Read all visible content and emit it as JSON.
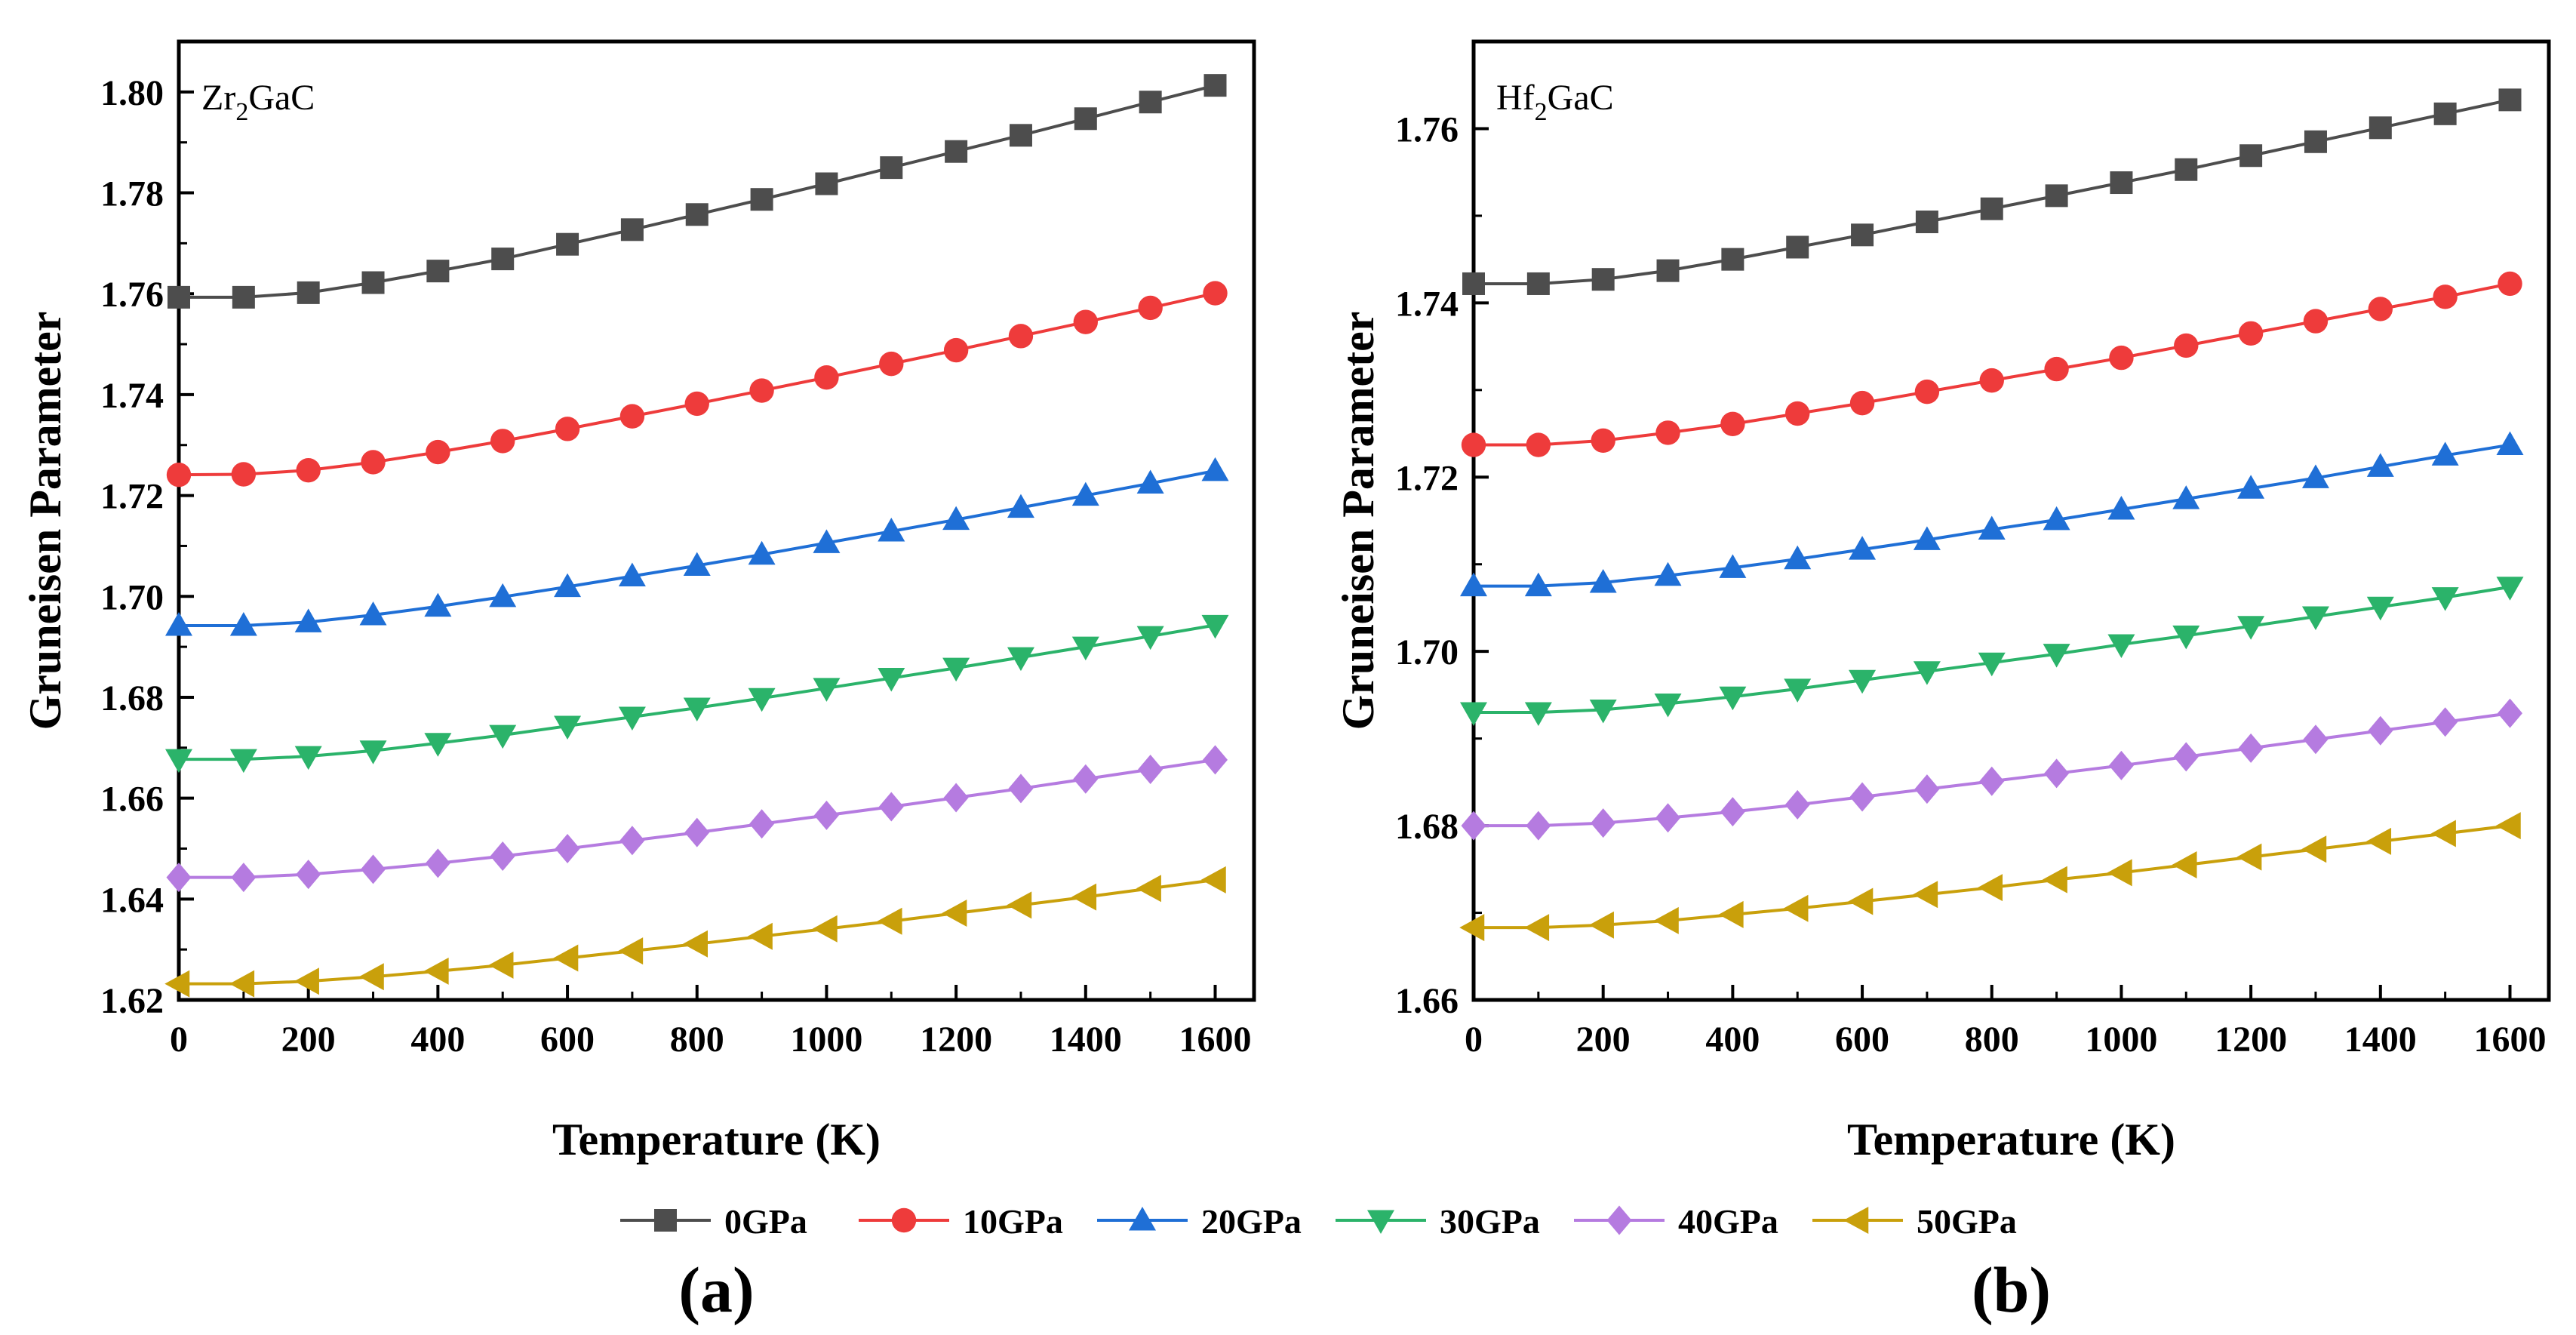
{
  "legend": [
    {
      "name": "0GPa",
      "color": "#4d4d4d",
      "marker": "square"
    },
    {
      "name": "10GPa",
      "color": "#ee3b3b",
      "marker": "circle"
    },
    {
      "name": "20GPa",
      "color": "#1f6fd6",
      "marker": "triangle-up"
    },
    {
      "name": "30GPa",
      "color": "#2bb36a",
      "marker": "triangle-down"
    },
    {
      "name": "40GPa",
      "color": "#b57be0",
      "marker": "diamond"
    },
    {
      "name": "50GPa",
      "color": "#c9a00b",
      "marker": "triangle-left"
    }
  ],
  "chart_data": [
    {
      "type": "line",
      "panel_label": "(a)",
      "sample": {
        "base": "Zr",
        "sub": "2",
        "rest": "GaC"
      },
      "xlabel": "Temperature (K)",
      "ylabel": "Gruneisen Parameter",
      "xlim": [
        0,
        1660
      ],
      "ylim": [
        1.62,
        1.81
      ],
      "xticks": [
        0,
        200,
        400,
        600,
        800,
        1000,
        1200,
        1400,
        1600
      ],
      "yticks": [
        1.62,
        1.64,
        1.66,
        1.68,
        1.7,
        1.72,
        1.74,
        1.76,
        1.78,
        1.8
      ],
      "x": [
        0,
        100,
        200,
        300,
        400,
        500,
        600,
        700,
        800,
        900,
        1000,
        1100,
        1200,
        1300,
        1400,
        1500,
        1600
      ],
      "series": [
        {
          "name": "0GPa",
          "values": [
            1.7593,
            1.7593,
            1.7602,
            1.7622,
            1.7645,
            1.7669,
            1.7698,
            1.7727,
            1.7757,
            1.7787,
            1.7818,
            1.785,
            1.7882,
            1.7914,
            1.7947,
            1.798,
            1.8013
          ]
        },
        {
          "name": "10GPa",
          "values": [
            1.7241,
            1.7242,
            1.725,
            1.7266,
            1.7286,
            1.7308,
            1.7332,
            1.7357,
            1.7382,
            1.7408,
            1.7434,
            1.7461,
            1.7488,
            1.7516,
            1.7544,
            1.7572,
            1.7601
          ]
        },
        {
          "name": "20GPa",
          "values": [
            1.6942,
            1.6942,
            1.6949,
            1.6963,
            1.698,
            1.6999,
            1.7019,
            1.704,
            1.7061,
            1.7083,
            1.7106,
            1.7129,
            1.7152,
            1.7176,
            1.72,
            1.7224,
            1.7249
          ]
        },
        {
          "name": "30GPa",
          "values": [
            1.6677,
            1.6677,
            1.6683,
            1.6694,
            1.6709,
            1.6725,
            1.6743,
            1.6761,
            1.6779,
            1.6798,
            1.6818,
            1.6838,
            1.6858,
            1.6879,
            1.69,
            1.6921,
            1.6943
          ]
        },
        {
          "name": "40GPa",
          "values": [
            1.6443,
            1.6443,
            1.6449,
            1.6459,
            1.6471,
            1.6485,
            1.65,
            1.6516,
            1.6532,
            1.6549,
            1.6566,
            1.6583,
            1.6601,
            1.6619,
            1.6638,
            1.6657,
            1.6676
          ]
        },
        {
          "name": "50GPa",
          "values": [
            1.6232,
            1.6232,
            1.6237,
            1.6246,
            1.6257,
            1.6269,
            1.6283,
            1.6297,
            1.6311,
            1.6326,
            1.6341,
            1.6356,
            1.6372,
            1.6388,
            1.6404,
            1.6421,
            1.6438
          ]
        }
      ]
    },
    {
      "type": "line",
      "panel_label": "(b)",
      "sample": {
        "base": "Hf",
        "sub": "2",
        "rest": "GaC"
      },
      "xlabel": "Temperature (K)",
      "ylabel": "Gruneisen Parameter",
      "xlim": [
        0,
        1660
      ],
      "ylim": [
        1.66,
        1.77
      ],
      "xticks": [
        0,
        200,
        400,
        600,
        800,
        1000,
        1200,
        1400,
        1600
      ],
      "yticks": [
        1.66,
        1.68,
        1.7,
        1.72,
        1.74,
        1.76
      ],
      "x": [
        0,
        100,
        200,
        300,
        400,
        500,
        600,
        700,
        800,
        900,
        1000,
        1100,
        1200,
        1300,
        1400,
        1500,
        1600
      ],
      "series": [
        {
          "name": "0GPa",
          "values": [
            1.7422,
            1.7422,
            1.7427,
            1.7437,
            1.745,
            1.7464,
            1.7478,
            1.7493,
            1.7508,
            1.7523,
            1.7538,
            1.7553,
            1.7569,
            1.7585,
            1.7601,
            1.7617,
            1.7633
          ]
        },
        {
          "name": "10GPa",
          "values": [
            1.7237,
            1.7237,
            1.7242,
            1.7251,
            1.7261,
            1.7273,
            1.7285,
            1.7298,
            1.7311,
            1.7324,
            1.7337,
            1.7351,
            1.7365,
            1.7379,
            1.7393,
            1.7407,
            1.7422
          ]
        },
        {
          "name": "20GPa",
          "values": [
            1.7075,
            1.7075,
            1.7079,
            1.7087,
            1.7096,
            1.7106,
            1.7117,
            1.7128,
            1.714,
            1.7151,
            1.7163,
            1.7175,
            1.7187,
            1.7199,
            1.7212,
            1.7225,
            1.7237
          ]
        },
        {
          "name": "30GPa",
          "values": [
            1.693,
            1.693,
            1.6933,
            1.694,
            1.6948,
            1.6957,
            1.6967,
            1.6977,
            1.6987,
            1.6997,
            1.7008,
            1.7018,
            1.7029,
            1.704,
            1.7051,
            1.7062,
            1.7074
          ]
        },
        {
          "name": "40GPa",
          "values": [
            1.68,
            1.68,
            1.6803,
            1.6809,
            1.6816,
            1.6824,
            1.6833,
            1.6842,
            1.6851,
            1.686,
            1.6869,
            1.6879,
            1.6889,
            1.6899,
            1.6909,
            1.6919,
            1.6929
          ]
        },
        {
          "name": "50GPa",
          "values": [
            1.6683,
            1.6683,
            1.6686,
            1.6691,
            1.6698,
            1.6705,
            1.6713,
            1.6721,
            1.6729,
            1.6738,
            1.6746,
            1.6755,
            1.6764,
            1.6773,
            1.6782,
            1.6791,
            1.68
          ]
        }
      ]
    }
  ]
}
